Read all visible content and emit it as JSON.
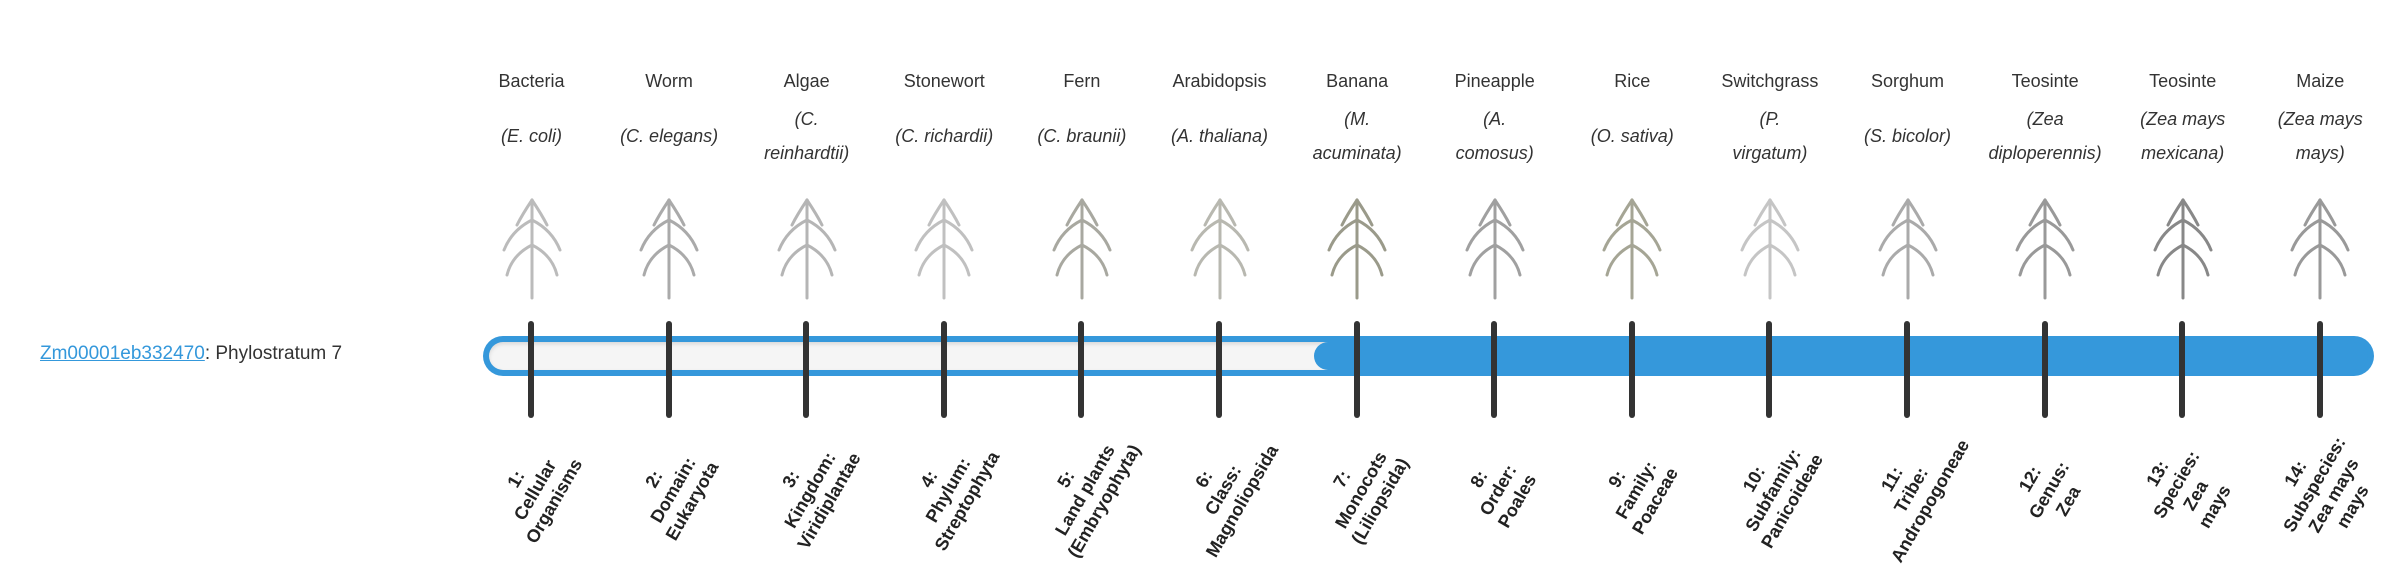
{
  "gene": {
    "id": "Zm00001eb332470",
    "separator": ": ",
    "label": "Phylostratum 7"
  },
  "colors": {
    "accent": "#3598db",
    "tick": "#333333",
    "empty": "#f5f5f5"
  },
  "progress": {
    "level": 7,
    "max": 14
  },
  "organisms": [
    {
      "common": "Bacteria",
      "scientific": "(E. coli)",
      "icon": "bacteria-illustration"
    },
    {
      "common": "Worm",
      "scientific": "(C. elegans)",
      "icon": "worm-illustration"
    },
    {
      "common": "Algae",
      "scientific": "(C.\nreinhardtii)",
      "icon": "algae-illustration"
    },
    {
      "common": "Stonewort",
      "scientific": "(C. richardii)",
      "icon": "stonewort-illustration"
    },
    {
      "common": "Fern",
      "scientific": "(C. braunii)",
      "icon": "fern-illustration"
    },
    {
      "common": "Arabidopsis",
      "scientific": "(A. thaliana)",
      "icon": "arabidopsis-illustration"
    },
    {
      "common": "Banana",
      "scientific": "(M.\nacuminata)",
      "icon": "banana-illustration"
    },
    {
      "common": "Pineapple",
      "scientific": "(A.\ncomosus)",
      "icon": "pineapple-illustration"
    },
    {
      "common": "Rice",
      "scientific": "(O. sativa)",
      "icon": "rice-illustration"
    },
    {
      "common": "Switchgrass",
      "scientific": "(P.\nvirgatum)",
      "icon": "switchgrass-illustration"
    },
    {
      "common": "Sorghum",
      "scientific": "(S. bicolor)",
      "icon": "sorghum-illustration"
    },
    {
      "common": "Teosinte",
      "scientific": "(Zea\ndiploperennis)",
      "icon": "teosinte-illustration"
    },
    {
      "common": "Teosinte",
      "scientific": "(Zea mays\nmexicana)",
      "icon": "teosinte-illustration"
    },
    {
      "common": "Maize",
      "scientific": "(Zea mays\nmays)",
      "icon": "maize-illustration"
    }
  ],
  "strata": [
    "1:\nCellular\nOrganisms",
    "2:\nDomain:\nEukaryota",
    "3:\nKingdom:\nViridiplantae",
    "4:\nPhylum:\nStreptophyta",
    "5:\nLand plants\n(Embryophyta)",
    "6:\nClass:\nMagnoliopsida",
    "7:\nMonocots\n(Liliopsida)",
    "8:\nOrder:\nPoales",
    "9:\nFamily:\nPoaceae",
    "10:\nSubfamily:\nPanicoideae",
    "11:\nTribe:\nAndropogoneae",
    "12:\nGenus:\nZea",
    "13:\nSpecies:\nZea\nmays",
    "14:\nSubspecies:\nZea mays\nmays"
  ]
}
